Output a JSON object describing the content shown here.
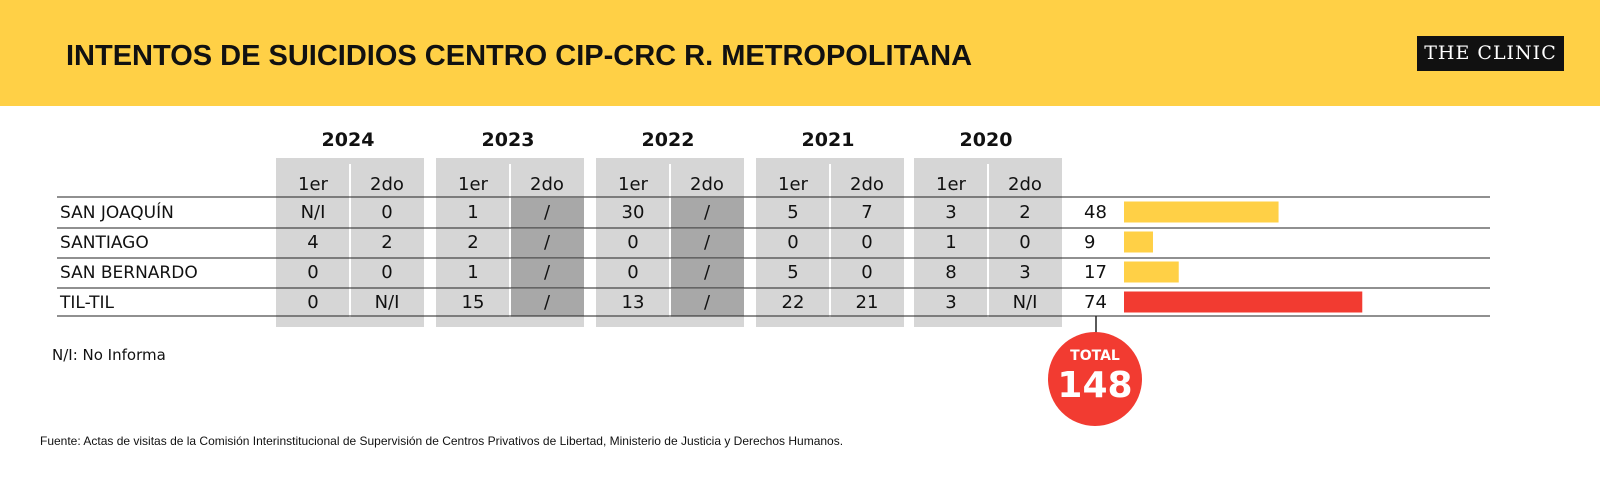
{
  "header": {
    "title": "INTENTOS DE SUICIDIOS CENTRO CIP-CRC R. METROPOLITANA",
    "logo": "THE CLINIC"
  },
  "colors": {
    "header_bg": "#FFD046",
    "cell_gray": "#D6D6D6",
    "cell_dark": "#A8A8A8",
    "bar_yellow": "#FFD046",
    "bar_red": "#F23B31",
    "total_red": "#F23B31"
  },
  "chart_data": {
    "type": "table",
    "years": [
      "2024",
      "2023",
      "2022",
      "2021",
      "2020"
    ],
    "semesters": [
      "1er",
      "2do"
    ],
    "rows": [
      {
        "name": "SAN JOAQUÍN",
        "values": [
          "N/I",
          "0",
          "1",
          "/",
          "30",
          "/",
          "5",
          "7",
          "3",
          "2"
        ],
        "total": 48,
        "highlight": false
      },
      {
        "name": "SANTIAGO",
        "values": [
          "4",
          "2",
          "2",
          "/",
          "0",
          "/",
          "0",
          "0",
          "1",
          "0"
        ],
        "total": 9,
        "highlight": false
      },
      {
        "name": "SAN BERNARDO",
        "values": [
          "0",
          "0",
          "1",
          "/",
          "0",
          "/",
          "5",
          "0",
          "8",
          "3"
        ],
        "total": 17,
        "highlight": false
      },
      {
        "name": "TIL-TIL",
        "values": [
          "0",
          "N/I",
          "15",
          "/",
          "13",
          "/",
          "22",
          "21",
          "3",
          "N/I"
        ],
        "total": 74,
        "highlight": true
      }
    ],
    "total_label": "TOTAL",
    "total_value": "148"
  },
  "footer": {
    "note": "N/I: No Informa",
    "source": "Fuente: Actas de visitas de la Comisión Interinstitucional de Supervisión de Centros Privativos de Libertad, Ministerio de Justicia y Derechos Humanos."
  }
}
